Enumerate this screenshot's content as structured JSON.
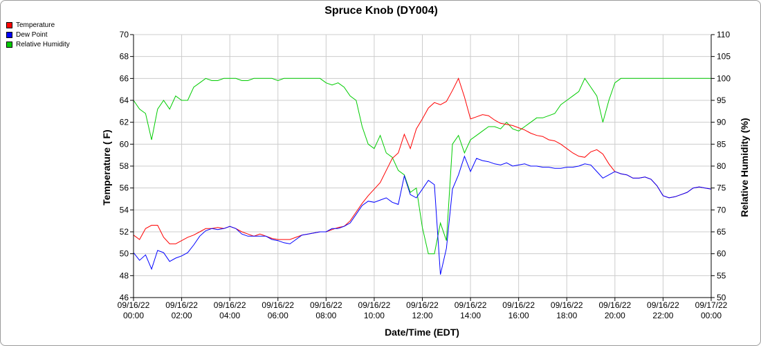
{
  "chart_data": {
    "type": "line",
    "title": "Spruce Knob (DY004)",
    "xlabel": "Date/Time (EDT)",
    "ylabel": "Temperature ( F)",
    "y2label": "Relative Humidity (%)",
    "ylim": [
      46,
      70
    ],
    "y2lim": [
      50,
      110
    ],
    "xlim": [
      "09/16/22 00:00",
      "09/17/22 00:00"
    ],
    "x_ticks": [
      [
        "09/16/22",
        "00:00"
      ],
      [
        "09/16/22",
        "02:00"
      ],
      [
        "09/16/22",
        "04:00"
      ],
      [
        "09/16/22",
        "06:00"
      ],
      [
        "09/16/22",
        "08:00"
      ],
      [
        "09/16/22",
        "10:00"
      ],
      [
        "09/16/22",
        "12:00"
      ],
      [
        "09/16/22",
        "14:00"
      ],
      [
        "09/16/22",
        "16:00"
      ],
      [
        "09/16/22",
        "18:00"
      ],
      [
        "09/16/22",
        "20:00"
      ],
      [
        "09/16/22",
        "22:00"
      ],
      [
        "09/17/22",
        "00:00"
      ]
    ],
    "y_ticks": [
      "46",
      "48",
      "50",
      "52",
      "54",
      "56",
      "58",
      "60",
      "62",
      "64",
      "66",
      "68",
      "70"
    ],
    "y2_ticks": [
      "50",
      "55",
      "60",
      "65",
      "70",
      "75",
      "80",
      "85",
      "90",
      "95",
      "100",
      "105",
      "110"
    ],
    "grid": true,
    "legend_position": "top-left",
    "x": [
      "09/16/22 00:00",
      "09/16/22 00:15",
      "09/16/22 00:30",
      "09/16/22 00:45",
      "09/16/22 01:00",
      "09/16/22 01:15",
      "09/16/22 01:30",
      "09/16/22 01:45",
      "09/16/22 02:00",
      "09/16/22 02:15",
      "09/16/22 02:30",
      "09/16/22 02:45",
      "09/16/22 03:00",
      "09/16/22 03:15",
      "09/16/22 03:30",
      "09/16/22 03:45",
      "09/16/22 04:00",
      "09/16/22 04:15",
      "09/16/22 04:30",
      "09/16/22 04:45",
      "09/16/22 05:00",
      "09/16/22 05:15",
      "09/16/22 05:30",
      "09/16/22 05:45",
      "09/16/22 06:00",
      "09/16/22 06:15",
      "09/16/22 06:30",
      "09/16/22 06:45",
      "09/16/22 07:00",
      "09/16/22 07:15",
      "09/16/22 07:30",
      "09/16/22 07:45",
      "09/16/22 08:00",
      "09/16/22 08:15",
      "09/16/22 08:30",
      "09/16/22 08:45",
      "09/16/22 09:00",
      "09/16/22 09:15",
      "09/16/22 09:30",
      "09/16/22 09:45",
      "09/16/22 10:00",
      "09/16/22 10:15",
      "09/16/22 10:30",
      "09/16/22 10:45",
      "09/16/22 11:00",
      "09/16/22 11:15",
      "09/16/22 11:30",
      "09/16/22 11:45",
      "09/16/22 12:00",
      "09/16/22 12:15",
      "09/16/22 12:30",
      "09/16/22 12:45",
      "09/16/22 13:00",
      "09/16/22 13:15",
      "09/16/22 13:30",
      "09/16/22 13:45",
      "09/16/22 14:00",
      "09/16/22 14:15",
      "09/16/22 14:30",
      "09/16/22 14:45",
      "09/16/22 15:00",
      "09/16/22 15:15",
      "09/16/22 15:30",
      "09/16/22 15:45",
      "09/16/22 16:00",
      "09/16/22 16:15",
      "09/16/22 16:30",
      "09/16/22 16:45",
      "09/16/22 17:00",
      "09/16/22 17:15",
      "09/16/22 17:30",
      "09/16/22 17:45",
      "09/16/22 18:00",
      "09/16/22 18:15",
      "09/16/22 18:30",
      "09/16/22 18:45",
      "09/16/22 19:00",
      "09/16/22 19:15",
      "09/16/22 19:30",
      "09/16/22 19:45",
      "09/16/22 20:00",
      "09/16/22 20:15",
      "09/16/22 20:30",
      "09/16/22 20:45",
      "09/16/22 21:00",
      "09/16/22 21:15",
      "09/16/22 21:30",
      "09/16/22 21:45",
      "09/16/22 22:00",
      "09/16/22 22:15",
      "09/16/22 22:30",
      "09/16/22 22:45",
      "09/16/22 23:00",
      "09/16/22 23:15",
      "09/16/22 23:30",
      "09/16/22 23:45",
      "09/17/22 00:00"
    ],
    "series": [
      {
        "name": "Temperature",
        "axis": "left",
        "color": "#ff0000",
        "values": [
          51.7,
          51.3,
          52.3,
          52.6,
          52.6,
          51.5,
          50.9,
          50.9,
          51.2,
          51.5,
          51.7,
          52.0,
          52.3,
          52.3,
          52.4,
          52.3,
          52.5,
          52.3,
          52.0,
          51.8,
          51.6,
          51.8,
          51.6,
          51.4,
          51.3,
          51.3,
          51.3,
          51.5,
          51.7,
          51.8,
          51.9,
          52.0,
          52.0,
          52.2,
          52.4,
          52.5,
          53.0,
          53.8,
          54.6,
          55.3,
          55.9,
          56.5,
          57.6,
          58.7,
          59.2,
          60.9,
          59.6,
          61.4,
          62.3,
          63.3,
          63.8,
          63.6,
          63.9,
          64.9,
          66.0,
          64.3,
          62.3,
          62.5,
          62.7,
          62.6,
          62.2,
          61.9,
          61.8,
          61.7,
          61.5,
          61.3,
          61.0,
          60.8,
          60.7,
          60.4,
          60.3,
          60.0,
          59.6,
          59.2,
          58.9,
          58.8,
          59.3,
          59.5,
          59.1,
          58.2,
          57.5,
          57.3,
          57.2,
          56.9,
          56.9,
          57.0,
          56.8,
          56.2,
          55.3,
          55.1,
          55.2,
          55.4,
          55.6,
          56.0,
          56.1,
          56.0,
          55.9
        ]
      },
      {
        "name": "Dew Point",
        "axis": "left",
        "color": "#0000ff",
        "values": [
          50.1,
          49.4,
          49.9,
          48.6,
          50.3,
          50.1,
          49.3,
          49.6,
          49.8,
          50.1,
          50.8,
          51.6,
          52.1,
          52.3,
          52.2,
          52.3,
          52.5,
          52.3,
          51.8,
          51.6,
          51.6,
          51.6,
          51.6,
          51.3,
          51.2,
          51.0,
          50.9,
          51.3,
          51.7,
          51.8,
          51.9,
          52.0,
          52.0,
          52.3,
          52.3,
          52.5,
          52.8,
          53.6,
          54.4,
          54.8,
          54.7,
          54.9,
          55.1,
          54.7,
          54.5,
          57.1,
          55.4,
          55.1,
          55.9,
          56.7,
          56.3,
          48.1,
          50.5,
          55.9,
          57.2,
          58.9,
          57.5,
          58.7,
          58.5,
          58.4,
          58.2,
          58.1,
          58.3,
          58.0,
          58.1,
          58.2,
          58.0,
          58.0,
          57.9,
          57.9,
          57.8,
          57.8,
          57.9,
          57.9,
          58.0,
          58.2,
          58.1,
          57.5,
          56.9,
          57.2,
          57.5,
          57.3,
          57.2,
          56.9,
          56.9,
          57.0,
          56.8,
          56.2,
          55.3,
          55.1,
          55.2,
          55.4,
          55.6,
          56.0,
          56.1,
          56.0,
          55.9
        ]
      },
      {
        "name": "Relative Humidity",
        "axis": "right",
        "color": "#00cc00",
        "values": [
          95,
          93,
          92,
          86,
          93,
          95,
          93,
          96,
          95,
          95,
          98,
          99,
          100,
          99.5,
          99.5,
          100,
          100,
          100,
          99.5,
          99.5,
          100,
          100,
          100,
          100,
          99.5,
          100,
          100,
          100,
          100,
          100,
          100,
          100,
          99,
          98.5,
          99,
          98,
          96,
          95,
          89,
          85,
          84,
          87,
          83,
          82,
          79,
          78,
          74,
          75,
          66,
          60,
          60,
          67,
          63,
          85,
          87,
          83,
          86,
          87,
          88,
          89,
          89,
          88.5,
          90,
          88.5,
          88,
          89,
          90,
          91,
          91,
          91.5,
          92,
          94,
          95,
          96,
          97,
          100,
          98,
          96,
          90,
          95,
          99,
          100,
          100,
          100,
          100,
          100,
          100,
          100,
          100,
          100,
          100,
          100,
          100,
          100,
          100,
          100,
          100
        ]
      }
    ]
  }
}
